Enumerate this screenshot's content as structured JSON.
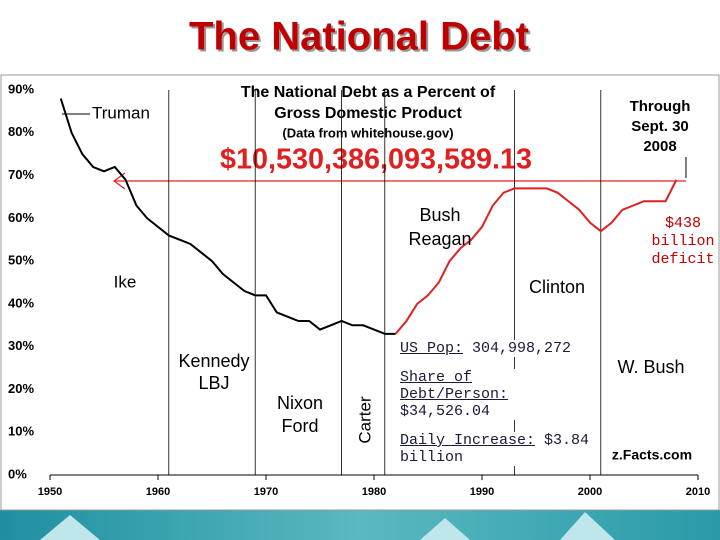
{
  "title": "The National Debt",
  "chart_data": {
    "type": "line",
    "title": [
      "The National Debt as a Percent of",
      "Gross Domestic Product"
    ],
    "subtitle": "(Data from whitehouse.gov)",
    "debt_label": "$10,530,386,093,589.13",
    "series": [
      {
        "color": "#000000",
        "x": [
          1951,
          1952,
          1953,
          1954,
          1955,
          1956,
          1957,
          1958,
          1959,
          1960,
          1961,
          1962,
          1963,
          1964,
          1965,
          1966,
          1967,
          1968,
          1969,
          1970,
          1971,
          1972,
          1973,
          1974,
          1975,
          1976,
          1977,
          1978,
          1979,
          1980,
          1981,
          1982
        ],
        "values": [
          88,
          80,
          75,
          72,
          71,
          72,
          69,
          63,
          60,
          58,
          56,
          55,
          54,
          52,
          50,
          47,
          45,
          43,
          42,
          42,
          38,
          37,
          36,
          36,
          34,
          35,
          36,
          35,
          35,
          34,
          33,
          33
        ]
      },
      {
        "color": "#e02020",
        "x": [
          1982,
          1983,
          1984,
          1985,
          1986,
          1987,
          1988,
          1989,
          1990,
          1991,
          1992,
          1993,
          1994,
          1995,
          1996,
          1997,
          1998,
          1999,
          2000,
          2001,
          2002,
          2003,
          2004,
          2005,
          2006,
          2007,
          2008
        ],
        "values": [
          33,
          36,
          40,
          42,
          45,
          50,
          53,
          55,
          58,
          63,
          66,
          67,
          67,
          67,
          67,
          66,
          64,
          62,
          59,
          57,
          59,
          62,
          63,
          64,
          64,
          64,
          69
        ]
      }
    ],
    "term_lines": [
      1961,
      1969,
      1977,
      1981,
      1993,
      2001
    ],
    "xlim": [
      1950,
      2010
    ],
    "xticks": [
      1950,
      1960,
      1970,
      1980,
      1990,
      2000,
      2010
    ],
    "ylim": [
      0,
      90
    ],
    "yticks": [
      {
        "value": 0,
        "label": "0%"
      },
      {
        "value": 10,
        "label": "10%"
      },
      {
        "value": 20,
        "label": "20%"
      },
      {
        "value": 30,
        "label": "30%"
      },
      {
        "value": 40,
        "label": "40%"
      },
      {
        "value": 50,
        "label": "50%"
      },
      {
        "value": 60,
        "label": "60%"
      },
      {
        "value": 70,
        "label": "70%"
      },
      {
        "value": 80,
        "label": "80%"
      },
      {
        "value": 90,
        "label": "90%"
      }
    ],
    "annotations": [
      [
        "Truman"
      ],
      [
        "Ike"
      ],
      [
        "Kennedy",
        "LBJ"
      ],
      [
        "Nixon",
        "Ford"
      ],
      [
        "Carter"
      ],
      [
        "Bush",
        "Reagan"
      ],
      [
        "Clinton"
      ],
      [
        "W. Bush"
      ],
      [
        "Through",
        "Sept. 30",
        "2008"
      ],
      [
        "$438",
        "billion",
        "deficit"
      ],
      [
        "z.Facts.com"
      ]
    ],
    "stats": [
      {
        "label": "US Pop:",
        "value": "304,998,272"
      },
      {
        "label": "Share of Debt/Person:",
        "value": "$34,526.04"
      },
      {
        "label": "Daily Increase:",
        "value": "$3.84 billion"
      }
    ]
  }
}
